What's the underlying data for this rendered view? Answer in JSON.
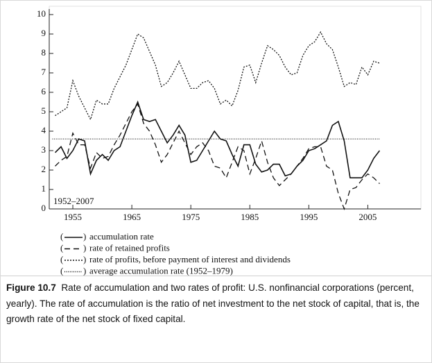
{
  "chart_data": {
    "type": "line",
    "x": [
      1952,
      1953,
      1954,
      1955,
      1956,
      1957,
      1958,
      1959,
      1960,
      1961,
      1962,
      1963,
      1964,
      1965,
      1966,
      1967,
      1968,
      1969,
      1970,
      1971,
      1972,
      1973,
      1974,
      1975,
      1976,
      1977,
      1978,
      1979,
      1980,
      1981,
      1982,
      1983,
      1984,
      1985,
      1986,
      1987,
      1988,
      1989,
      1990,
      1991,
      1992,
      1993,
      1994,
      1995,
      1996,
      1997,
      1998,
      1999,
      2000,
      2001,
      2002,
      2003,
      2004,
      2005,
      2006,
      2007
    ],
    "series": [
      {
        "name": "accumulation rate",
        "color": "#111111",
        "style": "solid",
        "values": [
          2.9,
          3.2,
          2.6,
          3.0,
          3.6,
          3.5,
          1.8,
          2.5,
          2.8,
          2.5,
          3.0,
          3.2,
          4.0,
          4.8,
          5.5,
          4.6,
          4.5,
          4.6,
          4.0,
          3.4,
          3.8,
          4.3,
          3.8,
          2.4,
          2.5,
          3.0,
          3.5,
          4.0,
          3.6,
          3.5,
          2.8,
          2.2,
          3.3,
          3.3,
          2.3,
          1.9,
          2.0,
          2.3,
          2.3,
          1.7,
          1.8,
          2.2,
          2.5,
          3.0,
          3.1,
          3.3,
          3.5,
          4.3,
          4.5,
          3.5,
          1.6,
          1.6,
          1.6,
          2.0,
          2.6,
          3.0
        ]
      },
      {
        "name": "rate of retained profits",
        "color": "#111111",
        "style": "dashed",
        "values": [
          2.2,
          2.5,
          2.7,
          3.9,
          3.3,
          3.3,
          2.1,
          2.9,
          2.6,
          2.7,
          3.3,
          3.8,
          4.4,
          5.0,
          5.4,
          4.4,
          4.0,
          3.3,
          2.4,
          2.8,
          3.4,
          4.0,
          3.4,
          2.8,
          3.2,
          3.4,
          3.0,
          2.2,
          2.1,
          1.6,
          2.4,
          3.2,
          3.0,
          1.8,
          2.6,
          3.5,
          2.4,
          1.6,
          1.2,
          1.5,
          1.8,
          2.2,
          2.6,
          3.1,
          3.2,
          3.2,
          2.2,
          2.0,
          0.8,
          0.0,
          1.0,
          1.1,
          1.5,
          1.8,
          1.6,
          1.3
        ]
      },
      {
        "name": "rate of profits, before payment of interest and dividends",
        "color": "#111111",
        "style": "dotted",
        "values": [
          4.8,
          5.0,
          5.2,
          6.6,
          5.8,
          5.2,
          4.6,
          5.6,
          5.4,
          5.4,
          6.2,
          6.8,
          7.4,
          8.2,
          9.0,
          8.8,
          8.1,
          7.4,
          6.3,
          6.5,
          7.0,
          7.6,
          6.9,
          6.2,
          6.2,
          6.5,
          6.6,
          6.2,
          5.4,
          5.6,
          5.3,
          6.1,
          7.3,
          7.4,
          6.5,
          7.5,
          8.4,
          8.2,
          7.9,
          7.3,
          6.9,
          7.0,
          7.9,
          8.4,
          8.6,
          9.1,
          8.5,
          8.2,
          7.3,
          6.3,
          6.5,
          6.4,
          7.3,
          6.9,
          7.6,
          7.5
        ]
      }
    ],
    "average": {
      "name": "average accumulation rate (1952–1979)",
      "value": 3.6,
      "color": "#111111",
      "style": "fine-dotted"
    },
    "annotation": "1952–2007",
    "xlim": [
      1951,
      2014
    ],
    "xticks": [
      1955,
      1965,
      1975,
      1985,
      1995,
      2005
    ],
    "ylim": [
      0,
      10
    ],
    "yticks": [
      0,
      1,
      2,
      3,
      4,
      5,
      6,
      7,
      8,
      9,
      10
    ]
  },
  "caption": {
    "label": "Figure 10.7",
    "text": "Rate of accumulation and two rates of profit: U.S. nonfinancial corporations (percent, yearly). The rate of accumulation is the ratio of net investment to the net stock of capital, that is, the growth rate of the net stock of fixed capital."
  }
}
